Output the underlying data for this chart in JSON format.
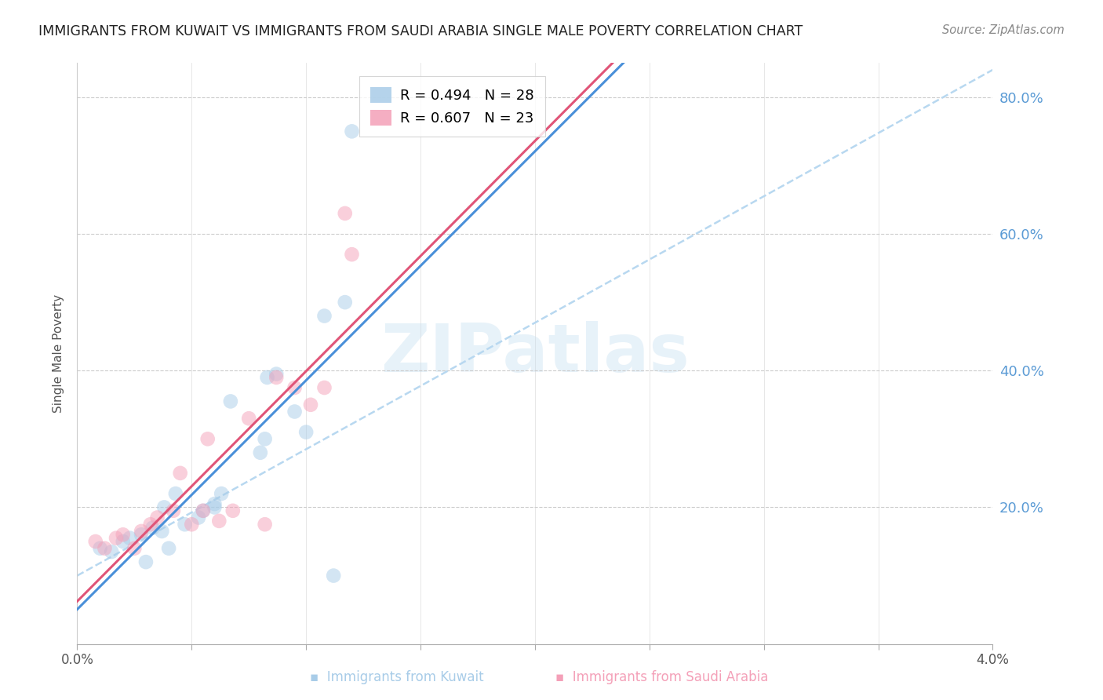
{
  "title": "IMMIGRANTS FROM KUWAIT VS IMMIGRANTS FROM SAUDI ARABIA SINGLE MALE POVERTY CORRELATION CHART",
  "source": "Source: ZipAtlas.com",
  "ylabel": "Single Male Poverty",
  "legend_R1": "R = 0.494",
  "legend_N1": "N = 28",
  "legend_R2": "R = 0.607",
  "legend_N2": "N = 23",
  "kuwait_color": "#a8cce8",
  "saudi_color": "#f4a0b8",
  "kuwait_line_color": "#4a90d9",
  "saudi_line_color": "#e05578",
  "dashed_line_color": "#b8d8f0",
  "kuwait_x": [
    0.001,
    0.0015,
    0.002,
    0.0023,
    0.0028,
    0.003,
    0.0033,
    0.0037,
    0.0038,
    0.004,
    0.0043,
    0.0047,
    0.0053,
    0.0055,
    0.006,
    0.006,
    0.0063,
    0.0067,
    0.008,
    0.0082,
    0.0083,
    0.0087,
    0.0095,
    0.01,
    0.0108,
    0.0112,
    0.0117,
    0.012
  ],
  "kuwait_y": [
    0.14,
    0.135,
    0.15,
    0.155,
    0.16,
    0.12,
    0.17,
    0.165,
    0.2,
    0.14,
    0.22,
    0.175,
    0.185,
    0.195,
    0.205,
    0.2,
    0.22,
    0.355,
    0.28,
    0.3,
    0.39,
    0.395,
    0.34,
    0.31,
    0.48,
    0.1,
    0.5,
    0.75
  ],
  "saudi_x": [
    0.0008,
    0.0012,
    0.0017,
    0.002,
    0.0025,
    0.0028,
    0.0032,
    0.0035,
    0.0042,
    0.0045,
    0.005,
    0.0055,
    0.0057,
    0.0062,
    0.0068,
    0.0075,
    0.0082,
    0.0087,
    0.0095,
    0.0102,
    0.0108,
    0.0117,
    0.012
  ],
  "saudi_y": [
    0.15,
    0.14,
    0.155,
    0.16,
    0.14,
    0.165,
    0.175,
    0.185,
    0.195,
    0.25,
    0.175,
    0.195,
    0.3,
    0.18,
    0.195,
    0.33,
    0.175,
    0.39,
    0.375,
    0.35,
    0.375,
    0.63,
    0.57
  ],
  "xlim": [
    0.0,
    0.04
  ],
  "ylim": [
    0.0,
    0.85
  ],
  "xtick_positions": [
    0.0,
    0.005,
    0.01,
    0.015,
    0.02,
    0.025,
    0.03,
    0.035,
    0.04
  ],
  "xtick_labels": [
    "0.0%",
    "",
    "",
    "",
    "",
    "",
    "",
    "",
    "4.0%"
  ],
  "ytick_positions": [
    0.2,
    0.4,
    0.6,
    0.8
  ],
  "right_yticklabels": [
    "20.0%",
    "40.0%",
    "60.0%",
    "80.0%"
  ],
  "watermark_text": "ZIPatlas",
  "title_fontsize": 12.5,
  "legend_fontsize": 13,
  "scatter_size": 180,
  "scatter_alpha": 0.5
}
